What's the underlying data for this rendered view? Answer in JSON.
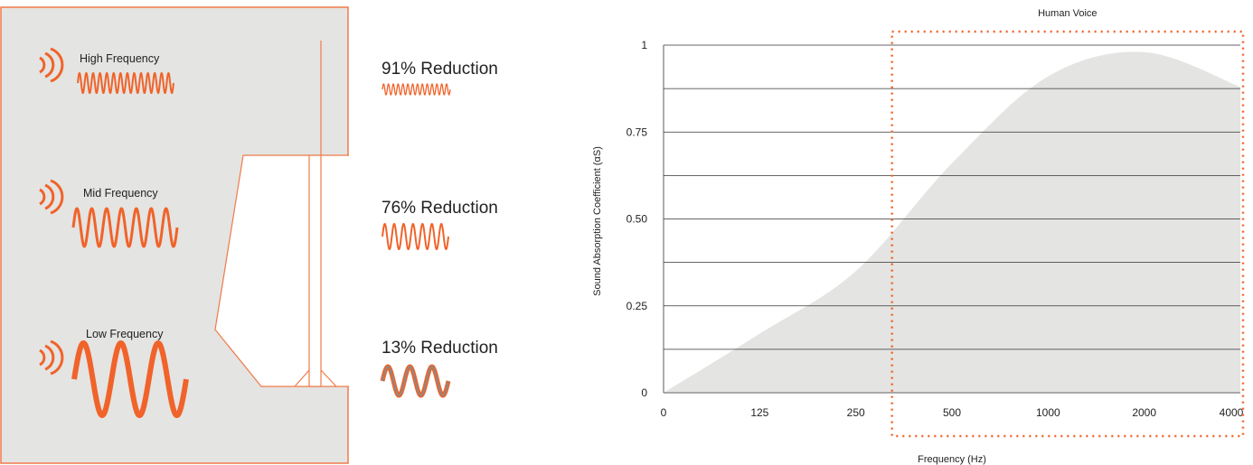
{
  "illustration": {
    "sources": [
      {
        "label": "High Frequency",
        "reduction": "91% Reduction",
        "level": "high"
      },
      {
        "label": "Mid Frequency",
        "reduction": "76% Reduction",
        "level": "mid"
      },
      {
        "label": "Low Frequency",
        "reduction": "13% Reduction",
        "level": "low"
      }
    ],
    "colors": {
      "accent": "#f0632a",
      "panel": "#e4e4e2",
      "border": "#f07a4a",
      "passed_wave_inner": "#8a8a8a"
    },
    "icons": [
      "sound-wave-icon",
      "waveform-icon"
    ]
  },
  "chart_data": {
    "type": "area",
    "title": "",
    "xlabel": "Frequency (Hz)",
    "ylabel": "Sound Absorption Coefficient (αS)",
    "x_ticks": [
      "0",
      "125",
      "250",
      "500",
      "1000",
      "2000",
      "4000"
    ],
    "y_ticks": [
      "0",
      "0.25",
      "0.50",
      "0.75",
      "1"
    ],
    "ylim": [
      0,
      1
    ],
    "grid": true,
    "x_scale": "octave",
    "series": [
      {
        "x": [
          "0",
          "125",
          "250",
          "500",
          "1000",
          "2000",
          "4000"
        ],
        "values": [
          0.0,
          0.17,
          0.35,
          0.66,
          0.91,
          0.98,
          0.88
        ]
      }
    ],
    "annotation": {
      "label": "Human Voice",
      "x_from": "250",
      "x_to": "4000",
      "color": "#f0632a"
    },
    "colors": {
      "fill": "#e4e4e2",
      "grid": "#333333"
    }
  }
}
